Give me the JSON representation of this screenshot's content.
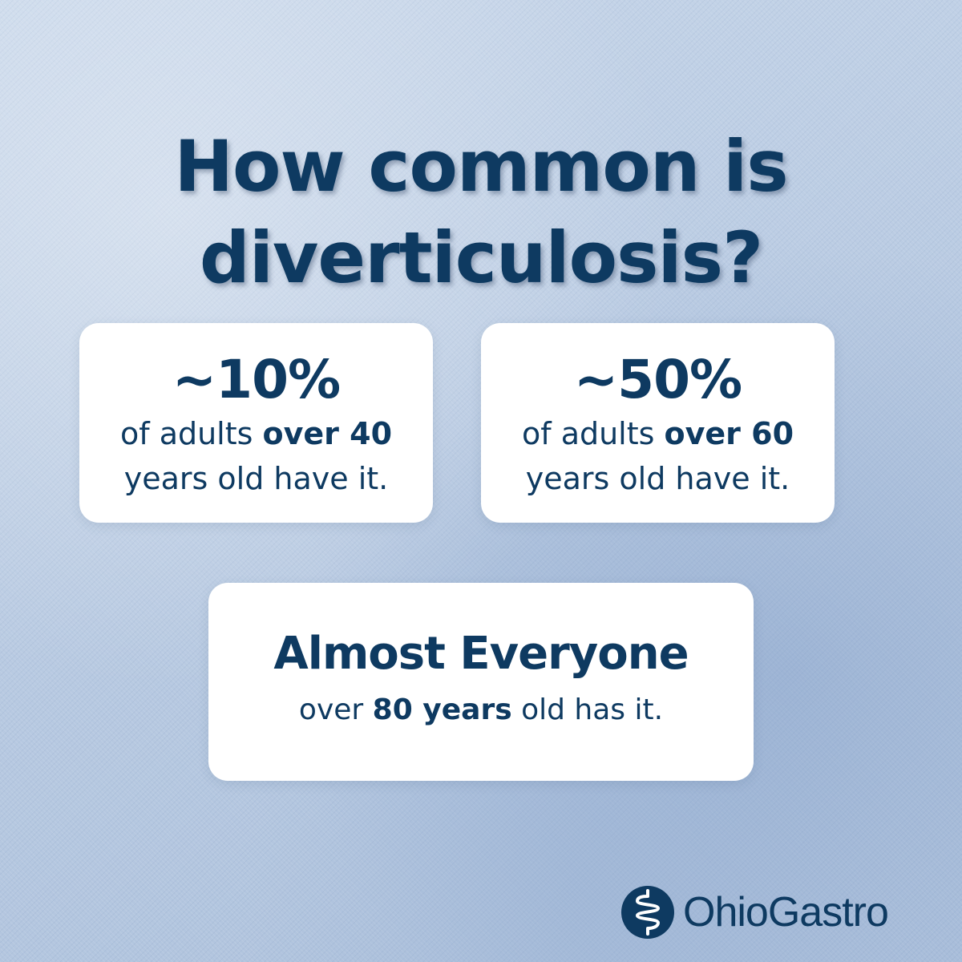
{
  "headline": {
    "line1": "How common is",
    "line2": "diverticulosis?"
  },
  "cards": [
    {
      "stat": "~10%",
      "line1_pre": "of adults ",
      "line1_bold": "over 40",
      "line2": "years old have it."
    },
    {
      "stat": "~50%",
      "line1_pre": "of adults ",
      "line1_bold": "over 60",
      "line2": "years old have it."
    }
  ],
  "summary": {
    "stat": "Almost Everyone",
    "pre": "over ",
    "bold": "80 years",
    "post": " old has it."
  },
  "brand": {
    "name": "OhioGastro",
    "icon": "intestine-icon"
  },
  "colors": {
    "text": "#0e3a61",
    "card": "#ffffff",
    "background": "#bccde3"
  }
}
